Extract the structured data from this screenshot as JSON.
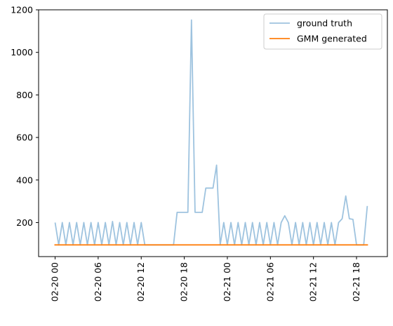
{
  "chart_data": {
    "type": "line",
    "title": "",
    "xlabel": "",
    "ylabel": "",
    "x_unit": "hours after 02-20 00:00",
    "xlim": [
      -2.3,
      46.3
    ],
    "ylim": [
      40,
      1200
    ],
    "yticks": [
      200,
      400,
      600,
      800,
      1000,
      1200
    ],
    "xticks": [
      {
        "value": 0,
        "label": "02-20 00"
      },
      {
        "value": 6,
        "label": "02-20 06"
      },
      {
        "value": 12,
        "label": "02-20 12"
      },
      {
        "value": 18,
        "label": "02-20 18"
      },
      {
        "value": 24,
        "label": "02-21 00"
      },
      {
        "value": 30,
        "label": "02-21 06"
      },
      {
        "value": 36,
        "label": "02-21 12"
      },
      {
        "value": 42,
        "label": "02-21 18"
      }
    ],
    "grid": false,
    "legend_position": "top-right",
    "series": [
      {
        "name": "ground truth",
        "color": "#9ec3df",
        "points": [
          [
            0,
            200
          ],
          [
            0.5,
            95
          ],
          [
            1,
            200
          ],
          [
            1.5,
            95
          ],
          [
            2,
            200
          ],
          [
            2.5,
            95
          ],
          [
            3,
            200
          ],
          [
            3.5,
            95
          ],
          [
            4,
            200
          ],
          [
            4.5,
            95
          ],
          [
            5,
            200
          ],
          [
            5.5,
            95
          ],
          [
            6,
            200
          ],
          [
            6.5,
            95
          ],
          [
            7,
            200
          ],
          [
            7.5,
            95
          ],
          [
            8,
            205
          ],
          [
            8.5,
            95
          ],
          [
            9,
            200
          ],
          [
            9.5,
            95
          ],
          [
            10,
            200
          ],
          [
            10.5,
            95
          ],
          [
            11,
            200
          ],
          [
            11.5,
            95
          ],
          [
            12,
            200
          ],
          [
            12.5,
            95
          ],
          [
            16.5,
            95
          ],
          [
            17,
            248
          ],
          [
            18.5,
            248
          ],
          [
            19,
            1152
          ],
          [
            19.5,
            248
          ],
          [
            20.5,
            248
          ],
          [
            21,
            362
          ],
          [
            22,
            362
          ],
          [
            22.5,
            470
          ],
          [
            23,
            95
          ],
          [
            23.5,
            200
          ],
          [
            24,
            95
          ],
          [
            24.5,
            200
          ],
          [
            25,
            95
          ],
          [
            25.5,
            200
          ],
          [
            26,
            95
          ],
          [
            26.5,
            200
          ],
          [
            27,
            95
          ],
          [
            27.5,
            200
          ],
          [
            28,
            95
          ],
          [
            28.5,
            200
          ],
          [
            29,
            95
          ],
          [
            29.5,
            200
          ],
          [
            30,
            95
          ],
          [
            30.5,
            200
          ],
          [
            31,
            95
          ],
          [
            31.5,
            200
          ],
          [
            32,
            232
          ],
          [
            32.5,
            200
          ],
          [
            33,
            95
          ],
          [
            33.5,
            200
          ],
          [
            34,
            95
          ],
          [
            34.5,
            200
          ],
          [
            35,
            95
          ],
          [
            35.5,
            200
          ],
          [
            36,
            95
          ],
          [
            36.5,
            200
          ],
          [
            37,
            95
          ],
          [
            37.5,
            200
          ],
          [
            38,
            95
          ],
          [
            38.5,
            200
          ],
          [
            39,
            95
          ],
          [
            39.5,
            200
          ],
          [
            40,
            218
          ],
          [
            40.5,
            325
          ],
          [
            41,
            218
          ],
          [
            41.5,
            215
          ],
          [
            42,
            95
          ],
          [
            43,
            95
          ],
          [
            43.5,
            278
          ]
        ]
      },
      {
        "name": "GMM generated",
        "color": "#ff7f0e",
        "points": [
          [
            -0.1,
            95
          ],
          [
            43.6,
            95
          ]
        ]
      }
    ]
  }
}
